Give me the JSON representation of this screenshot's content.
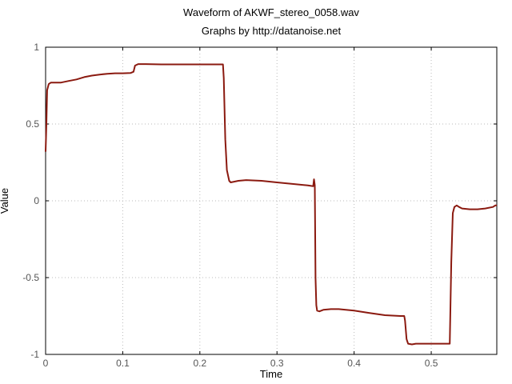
{
  "chart_data": {
    "type": "line",
    "title": "Waveform of AKWF_stereo_0058.wav",
    "subtitle": "Graphs by http://datanoise.net",
    "xlabel": "Time",
    "ylabel": "Value",
    "xlim": [
      0,
      0.585
    ],
    "ylim": [
      -1,
      1
    ],
    "xticks": [
      0,
      0.1,
      0.2,
      0.3,
      0.4,
      0.5
    ],
    "xtick_labels": [
      "0",
      "0.1",
      "0.2",
      "0.3",
      "0.4",
      "0.5"
    ],
    "yticks": [
      1,
      0.5,
      0,
      -0.5,
      -1
    ],
    "ytick_labels": [
      "1",
      "0.5",
      "0",
      "-0.5",
      "-1"
    ],
    "grid": true,
    "line_color": "#8b1a10",
    "series": [
      {
        "x": [
          0,
          0.001,
          0.002,
          0.004,
          0.007,
          0.01,
          0.02,
          0.03,
          0.04,
          0.05,
          0.06,
          0.07,
          0.08,
          0.09,
          0.1,
          0.11,
          0.114,
          0.116,
          0.12,
          0.13,
          0.15,
          0.2,
          0.22,
          0.23,
          0.231,
          0.233,
          0.235,
          0.238,
          0.24,
          0.245,
          0.25,
          0.26,
          0.28,
          0.3,
          0.32,
          0.34,
          0.347,
          0.348,
          0.349,
          0.35,
          0.351,
          0.352,
          0.355,
          0.36,
          0.37,
          0.38,
          0.4,
          0.42,
          0.44,
          0.46,
          0.465,
          0.466,
          0.468,
          0.47,
          0.475,
          0.48,
          0.5,
          0.52,
          0.524,
          0.526,
          0.528,
          0.53,
          0.533,
          0.536,
          0.54,
          0.55,
          0.56,
          0.57,
          0.58,
          0.583,
          0.585
        ],
        "y": [
          0.32,
          0.5,
          0.72,
          0.76,
          0.77,
          0.77,
          0.77,
          0.78,
          0.79,
          0.805,
          0.815,
          0.822,
          0.827,
          0.83,
          0.83,
          0.832,
          0.84,
          0.88,
          0.89,
          0.89,
          0.888,
          0.888,
          0.888,
          0.888,
          0.8,
          0.4,
          0.2,
          0.13,
          0.12,
          0.125,
          0.13,
          0.135,
          0.13,
          0.12,
          0.11,
          0.1,
          0.095,
          0.14,
          0.1,
          -0.5,
          -0.68,
          -0.715,
          -0.72,
          -0.71,
          -0.705,
          -0.705,
          -0.715,
          -0.73,
          -0.745,
          -0.75,
          -0.75,
          -0.78,
          -0.9,
          -0.93,
          -0.935,
          -0.93,
          -0.93,
          -0.93,
          -0.93,
          -0.4,
          -0.08,
          -0.04,
          -0.03,
          -0.04,
          -0.05,
          -0.055,
          -0.055,
          -0.05,
          -0.04,
          -0.03,
          -0.03
        ]
      }
    ]
  }
}
